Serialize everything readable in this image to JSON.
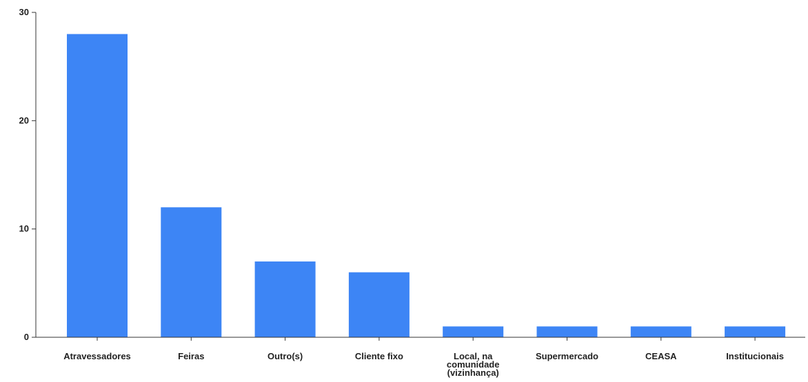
{
  "chart_data": {
    "type": "bar",
    "title": "",
    "xlabel": "",
    "ylabel": "",
    "categories": [
      "Atravessadores",
      "Feiras",
      "Outro(s)",
      "Cliente fixo",
      "Local, na comunidade (vizinhança)",
      "Supermercado",
      "CEASA",
      "Institucionais"
    ],
    "values": [
      28,
      12,
      7,
      6,
      1,
      1,
      1,
      1
    ],
    "ylim": [
      0,
      30
    ],
    "yticks": [
      0,
      10,
      20,
      30
    ],
    "grid": false,
    "legend": "none",
    "bar_color": "#3d85f5",
    "axis_color": "#333333"
  }
}
